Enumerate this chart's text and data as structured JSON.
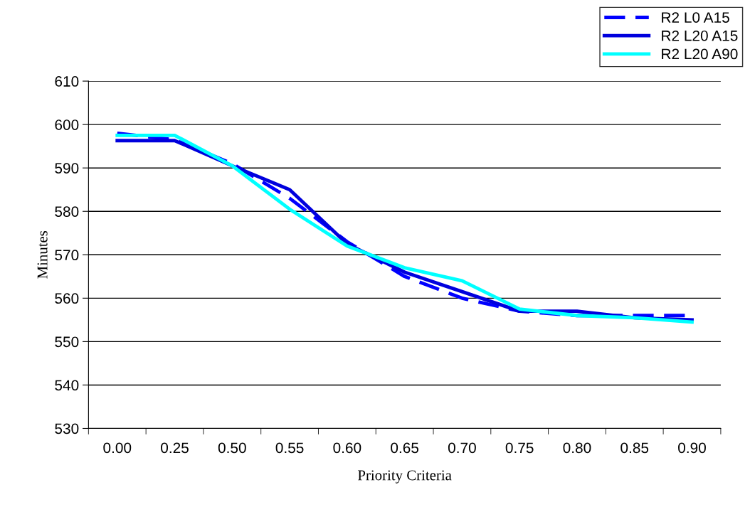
{
  "chart_data": {
    "type": "line",
    "xlabel": "Priority Criteria",
    "ylabel": "Minutes",
    "categories": [
      "0.00",
      "0.25",
      "0.50",
      "0.55",
      "0.60",
      "0.65",
      "0.70",
      "0.75",
      "0.80",
      "0.85",
      "0.90"
    ],
    "series": [
      {
        "name": "R2 L0 A15",
        "color": "#0000ff",
        "line_style": "dashed",
        "values": [
          598,
          596.5,
          591,
          583,
          573,
          565,
          560,
          557,
          556,
          556,
          556
        ]
      },
      {
        "name": "R2 L20 A15",
        "color": "#0000dd",
        "line_style": "solid",
        "values": [
          596.3,
          596.3,
          590.5,
          585,
          572.5,
          566,
          561.5,
          557,
          557,
          555.5,
          555
        ]
      },
      {
        "name": "R2 L20 A90",
        "color": "#00ffff",
        "line_style": "solid",
        "values": [
          597.5,
          597.5,
          590.5,
          580.5,
          572,
          567,
          564,
          557.5,
          556,
          555.5,
          554.5
        ]
      }
    ],
    "ylim": [
      530,
      610
    ],
    "yticks": [
      530,
      540,
      550,
      560,
      570,
      580,
      590,
      600,
      610
    ],
    "grid": "y",
    "legend": "top right",
    "marker": "none"
  }
}
